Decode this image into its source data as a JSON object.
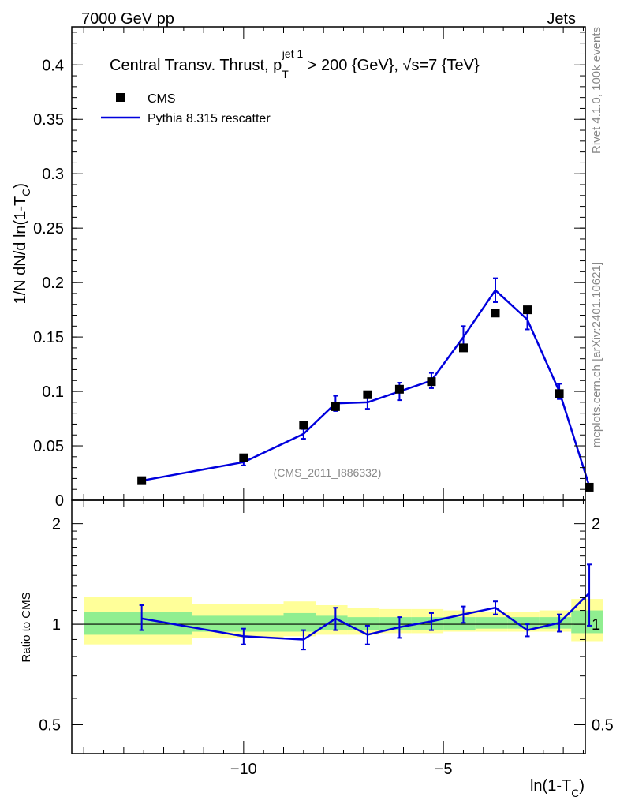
{
  "header": {
    "left": "7000 GeV pp",
    "right": "Jets"
  },
  "side_labels": {
    "rivet": "Rivet 4.1.0,  100k events",
    "mcplots": "mcplots.cern.ch [arXiv:2401.10621]"
  },
  "title_parts": {
    "main": "Central Transv. Thrust, p",
    "sub": "T",
    "sup": "jet 1",
    "rest": " > 200 {GeV}, √s=7 {TeV}"
  },
  "watermark": "(CMS_2011_I886332)",
  "legend": {
    "data_label": "CMS",
    "mc_label": "Pythia 8.315 rescatter"
  },
  "colors": {
    "mc": "#0000dd",
    "band_inner": "#90ee90",
    "band_outer": "#ffff99",
    "data": "#000000"
  },
  "chart_data": [
    {
      "type": "line",
      "panel": "main",
      "ylabel_parts": {
        "prefix": "1/N   dN/d ln(1-T",
        "sub": "C",
        "suffix": ")"
      },
      "xlim": [
        -14.3,
        -1.45
      ],
      "ylim": [
        0,
        0.435
      ],
      "y_ticks": [
        0,
        0.05,
        0.1,
        0.15,
        0.2,
        0.25,
        0.3,
        0.35,
        0.4
      ],
      "y_tick_labels": [
        "0",
        "0.05",
        "0.1",
        "0.15",
        "0.2",
        "0.25",
        "0.3",
        "0.35",
        "0.4"
      ],
      "bins": [
        [
          -14.0,
          -11.3
        ],
        [
          -11.3,
          -9.0
        ],
        [
          -9.0,
          -8.2
        ],
        [
          -8.2,
          -7.4
        ],
        [
          -7.4,
          -6.6
        ],
        [
          -6.6,
          -5.8
        ],
        [
          -5.8,
          -5.0
        ],
        [
          -5.0,
          -4.2
        ],
        [
          -4.2,
          -3.4
        ],
        [
          -3.4,
          -2.6
        ],
        [
          -2.6,
          -1.8
        ],
        [
          -1.8,
          -1.0
        ]
      ],
      "series": [
        {
          "name": "CMS",
          "x": [
            -12.55,
            -10.0,
            -8.5,
            -7.7,
            -6.9,
            -6.1,
            -5.3,
            -4.5,
            -3.7,
            -2.9,
            -2.1,
            -1.35
          ],
          "values": [
            0.018,
            0.039,
            0.069,
            0.086,
            0.097,
            0.102,
            0.109,
            0.14,
            0.172,
            0.175,
            0.098,
            0.012
          ]
        },
        {
          "name": "Pythia 8.315 rescatter",
          "x": [
            -12.55,
            -10.0,
            -8.5,
            -7.7,
            -6.9,
            -6.1,
            -5.3,
            -4.5,
            -3.7,
            -2.9,
            -2.1,
            -1.35
          ],
          "values": [
            0.018,
            0.035,
            0.061,
            0.089,
            0.09,
            0.1,
            0.11,
            0.15,
            0.193,
            0.166,
            0.1,
            0.013
          ],
          "errors": [
            0.0015,
            0.003,
            0.0045,
            0.007,
            0.006,
            0.008,
            0.007,
            0.01,
            0.011,
            0.009,
            0.007,
            0.002
          ]
        }
      ]
    },
    {
      "type": "line",
      "panel": "ratio",
      "ylabel": "Ratio to CMS",
      "xlabel_parts": {
        "prefix": "ln(1-T",
        "sub": "C",
        "suffix": ")"
      },
      "yscale": "log",
      "ylim": [
        0.41,
        2.35
      ],
      "y_ticks": [
        0.5,
        1,
        2
      ],
      "y_tick_labels": [
        "0.5",
        "1",
        "2"
      ],
      "x_ticks": [
        -10,
        -5
      ],
      "x_tick_labels": [
        "−10",
        "−5"
      ],
      "band_inner": [
        [
          0.93,
          1.09
        ],
        [
          0.95,
          1.06
        ],
        [
          0.95,
          1.08
        ],
        [
          0.96,
          1.06
        ],
        [
          0.96,
          1.05
        ],
        [
          0.96,
          1.05
        ],
        [
          0.96,
          1.05
        ],
        [
          0.96,
          1.05
        ],
        [
          0.97,
          1.05
        ],
        [
          0.97,
          1.05
        ],
        [
          0.97,
          1.05
        ],
        [
          0.94,
          1.1
        ]
      ],
      "band_outer": [
        [
          0.87,
          1.21
        ],
        [
          0.91,
          1.15
        ],
        [
          0.92,
          1.17
        ],
        [
          0.93,
          1.14
        ],
        [
          0.93,
          1.12
        ],
        [
          0.94,
          1.11
        ],
        [
          0.94,
          1.11
        ],
        [
          0.95,
          1.1
        ],
        [
          0.95,
          1.09
        ],
        [
          0.95,
          1.09
        ],
        [
          0.95,
          1.1
        ],
        [
          0.89,
          1.19
        ]
      ],
      "series": [
        {
          "name": "Pythia 8.315 rescatter / CMS",
          "x": [
            -12.55,
            -10.0,
            -8.5,
            -7.7,
            -6.9,
            -6.1,
            -5.3,
            -4.5,
            -3.7,
            -2.9,
            -2.1,
            -1.35
          ],
          "values": [
            1.04,
            0.92,
            0.9,
            1.04,
            0.93,
            0.98,
            1.02,
            1.07,
            1.12,
            0.96,
            1.01,
            1.24
          ],
          "err_low": [
            0.08,
            0.05,
            0.06,
            0.08,
            0.06,
            0.07,
            0.06,
            0.06,
            0.05,
            0.04,
            0.06,
            0.25
          ],
          "err_high": [
            0.1,
            0.05,
            0.06,
            0.08,
            0.06,
            0.07,
            0.06,
            0.06,
            0.05,
            0.04,
            0.06,
            0.27
          ]
        }
      ]
    }
  ]
}
